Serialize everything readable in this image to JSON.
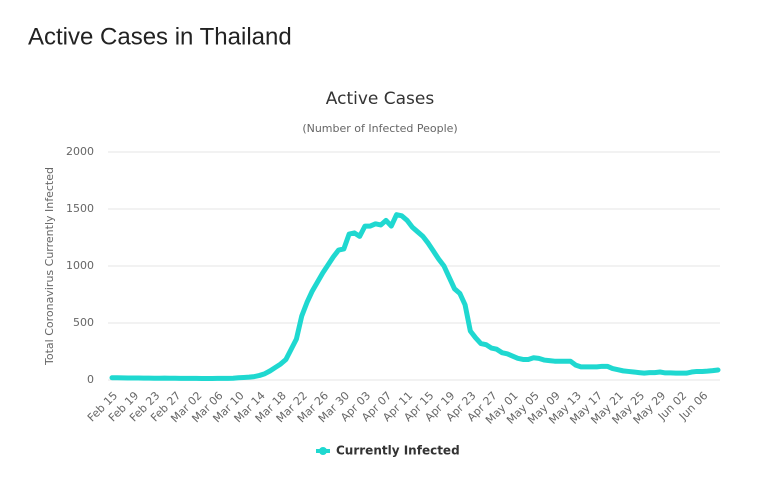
{
  "page_title": "Active Cases in Thailand",
  "chart_data": {
    "type": "line",
    "title": "Active Cases",
    "subtitle": "(Number of Infected People)",
    "y_label": "Total Coronavirus Currently Infected",
    "categories": [
      "Feb 15",
      null,
      null,
      null,
      "Feb 19",
      null,
      null,
      null,
      "Feb 23",
      null,
      null,
      null,
      "Feb 27",
      null,
      null,
      null,
      "Mar 02",
      null,
      null,
      null,
      "Mar 06",
      null,
      null,
      null,
      "Mar 10",
      null,
      null,
      null,
      "Mar 14",
      null,
      null,
      null,
      "Mar 18",
      null,
      null,
      null,
      "Mar 22",
      null,
      null,
      null,
      "Mar 26",
      null,
      null,
      null,
      "Mar 30",
      null,
      null,
      null,
      "Apr 03",
      null,
      null,
      null,
      "Apr 07",
      null,
      null,
      null,
      "Apr 11",
      null,
      null,
      null,
      "Apr 15",
      null,
      null,
      null,
      "Apr 19",
      null,
      null,
      null,
      "Apr 23",
      null,
      null,
      null,
      "Apr 27",
      null,
      null,
      null,
      "May 01",
      null,
      null,
      null,
      "May 05",
      null,
      null,
      null,
      "May 09",
      null,
      null,
      null,
      "May 13",
      null,
      null,
      null,
      "May 17",
      null,
      null,
      null,
      "May 21",
      null,
      null,
      null,
      "May 25",
      null,
      null,
      null,
      "May 29",
      null,
      null,
      null,
      "Jun 02",
      null,
      null,
      null,
      "Jun 06",
      null,
      null,
      null
    ],
    "series": [
      {
        "name": "Currently Infected",
        "color": "#1fd8d0",
        "values": [
          20,
          20,
          19,
          18,
          17,
          17,
          16,
          16,
          15,
          15,
          16,
          15,
          15,
          14,
          14,
          14,
          14,
          13,
          13,
          13,
          14,
          14,
          14,
          15,
          20,
          22,
          25,
          30,
          40,
          55,
          80,
          110,
          140,
          180,
          270,
          360,
          560,
          680,
          780,
          860,
          940,
          1010,
          1080,
          1140,
          1150,
          1280,
          1290,
          1260,
          1350,
          1350,
          1370,
          1360,
          1400,
          1350,
          1450,
          1440,
          1400,
          1340,
          1300,
          1260,
          1200,
          1130,
          1060,
          1000,
          900,
          800,
          760,
          660,
          430,
          370,
          320,
          310,
          280,
          270,
          240,
          230,
          210,
          190,
          180,
          180,
          195,
          190,
          175,
          170,
          165,
          165,
          165,
          165,
          130,
          115,
          115,
          115,
          115,
          120,
          120,
          100,
          90,
          80,
          75,
          70,
          65,
          60,
          65,
          65,
          70,
          62,
          62,
          60,
          60,
          60,
          70,
          75,
          75,
          78,
          82,
          88
        ]
      }
    ],
    "ylim": [
      0,
      2000
    ],
    "yticks": [
      0,
      500,
      1000,
      1500,
      2000
    ],
    "grid": true,
    "legend": "bottom"
  }
}
